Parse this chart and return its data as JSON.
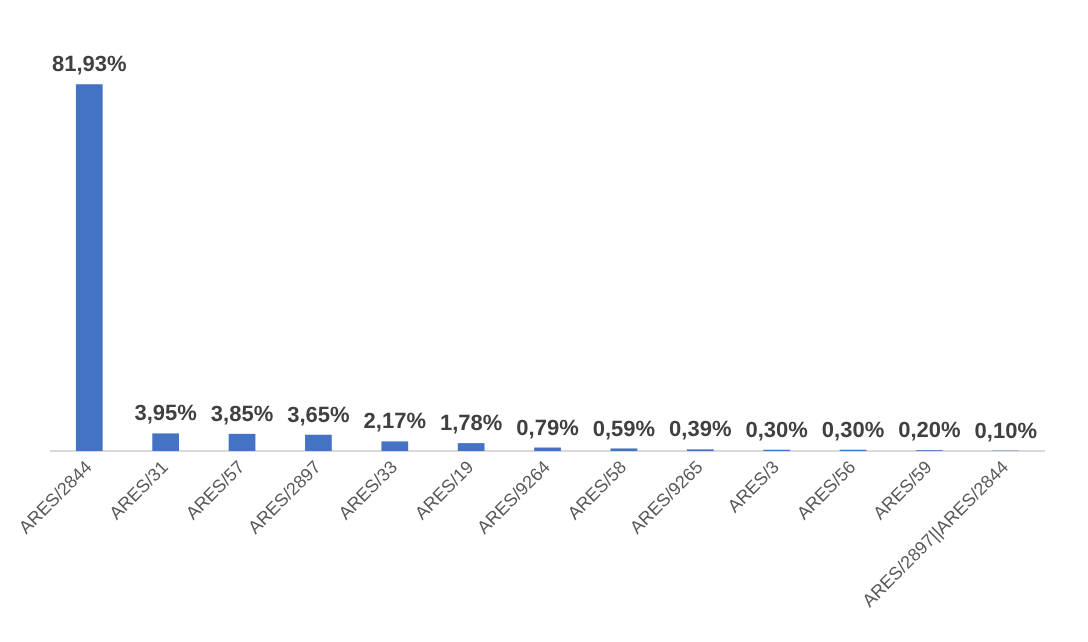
{
  "chart_data": {
    "type": "bar",
    "categories": [
      "ARES/2844",
      "ARES/31",
      "ARES/57",
      "ARES/2897",
      "ARES/33",
      "ARES/19",
      "ARES/9264",
      "ARES/58",
      "ARES/9265",
      "ARES/3",
      "ARES/56",
      "ARES/59",
      "ARES/2897||ARES/2844"
    ],
    "values": [
      81.93,
      3.95,
      3.85,
      3.65,
      2.17,
      1.78,
      0.79,
      0.59,
      0.39,
      0.3,
      0.3,
      0.2,
      0.1
    ],
    "value_labels": [
      "81,93%",
      "3,95%",
      "3,85%",
      "3,65%",
      "2,17%",
      "1,78%",
      "0,79%",
      "0,59%",
      "0,39%",
      "0,30%",
      "0,30%",
      "0,20%",
      "0,10%"
    ],
    "color": "#4472c4",
    "grid": false,
    "legend": false
  }
}
